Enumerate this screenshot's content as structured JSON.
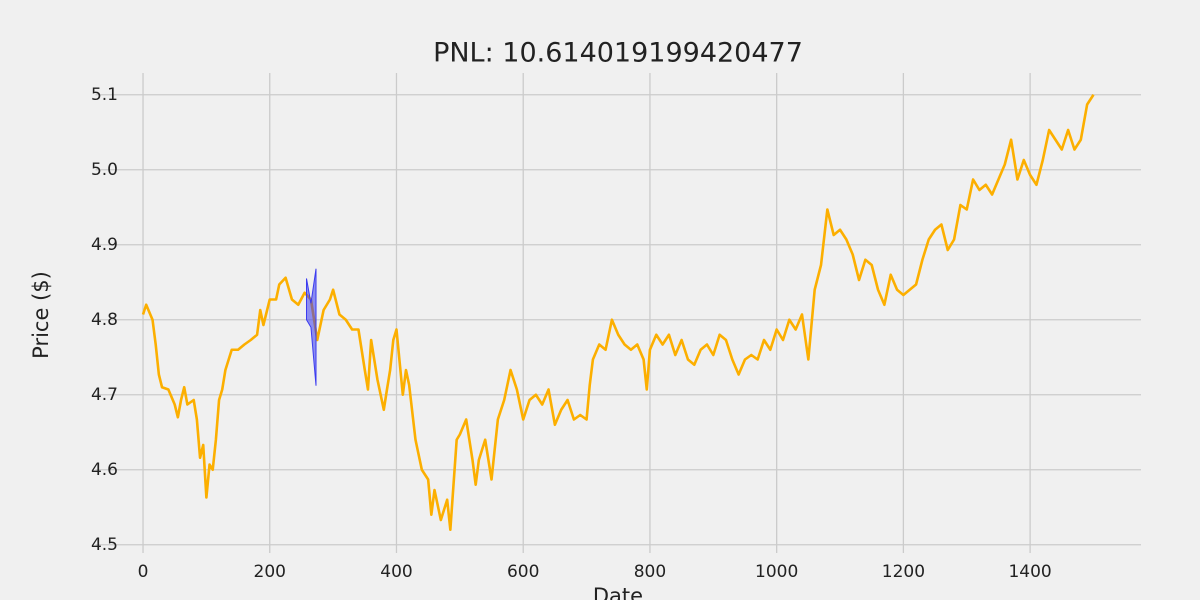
{
  "chart_data": {
    "type": "line",
    "title": "PNL: 10.614019199420477",
    "x_label": "Date",
    "y_label": "Price ($)",
    "grid": true,
    "xlim": [
      -75,
      1575
    ],
    "ylim": [
      4.489,
      5.129
    ],
    "xticks": [
      0,
      200,
      400,
      600,
      800,
      1000,
      1200,
      1400
    ],
    "yticks": [
      4.5,
      4.6,
      4.7,
      4.8,
      4.9,
      {
        "value": 5,
        "label": "5.0"
      },
      5.1
    ],
    "x": [
      0,
      5,
      15,
      20,
      25,
      30,
      40,
      50,
      55,
      60,
      65,
      70,
      80,
      85,
      90,
      95,
      100,
      105,
      110,
      115,
      120,
      125,
      130,
      140,
      150,
      160,
      170,
      180,
      185,
      190,
      200,
      210,
      215,
      225,
      235,
      245,
      255,
      265,
      275,
      285,
      295,
      300,
      310,
      320,
      330,
      340,
      350,
      355,
      360,
      370,
      380,
      385,
      390,
      395,
      400,
      410,
      415,
      420,
      430,
      440,
      450,
      455,
      460,
      470,
      480,
      485,
      495,
      500,
      510,
      520,
      525,
      530,
      540,
      550,
      560,
      570,
      580,
      590,
      600,
      610,
      620,
      630,
      640,
      650,
      660,
      670,
      680,
      690,
      700,
      705,
      710,
      720,
      730,
      740,
      750,
      760,
      770,
      780,
      790,
      795,
      800,
      810,
      820,
      830,
      840,
      850,
      860,
      870,
      880,
      890,
      900,
      910,
      920,
      930,
      940,
      950,
      960,
      970,
      980,
      990,
      1000,
      1010,
      1020,
      1030,
      1040,
      1050,
      1060,
      1070,
      1080,
      1090,
      1100,
      1110,
      1120,
      1130,
      1140,
      1150,
      1160,
      1170,
      1180,
      1190,
      1200,
      1210,
      1220,
      1230,
      1240,
      1250,
      1260,
      1270,
      1280,
      1290,
      1300,
      1310,
      1320,
      1330,
      1340,
      1350,
      1360,
      1370,
      1380,
      1390,
      1400,
      1410,
      1420,
      1430,
      1440,
      1450,
      1460,
      1470,
      1480,
      1490,
      1500
    ],
    "series": [
      {
        "color": "#fcaf00",
        "values": [
          4.807,
          4.82,
          4.8,
          4.767,
          4.727,
          4.71,
          4.707,
          4.687,
          4.67,
          4.693,
          4.71,
          4.687,
          4.693,
          4.667,
          4.616,
          4.633,
          4.563,
          4.607,
          4.6,
          4.64,
          4.693,
          4.707,
          4.733,
          4.76,
          4.76,
          4.767,
          4.773,
          4.78,
          4.813,
          4.793,
          4.827,
          4.827,
          4.847,
          4.856,
          4.827,
          4.82,
          4.836,
          4.827,
          4.773,
          4.813,
          4.827,
          4.84,
          4.807,
          4.8,
          4.787,
          4.787,
          4.733,
          4.707,
          4.773,
          4.72,
          4.68,
          4.707,
          4.733,
          4.773,
          4.787,
          4.7,
          4.733,
          4.713,
          4.64,
          4.6,
          4.587,
          4.54,
          4.573,
          4.533,
          4.56,
          4.52,
          4.64,
          4.647,
          4.667,
          4.613,
          4.58,
          4.613,
          4.64,
          4.587,
          4.667,
          4.693,
          4.733,
          4.707,
          4.667,
          4.693,
          4.7,
          4.687,
          4.707,
          4.66,
          4.68,
          4.693,
          4.667,
          4.673,
          4.667,
          4.713,
          4.747,
          4.767,
          4.76,
          4.8,
          4.78,
          4.767,
          4.76,
          4.767,
          4.747,
          4.707,
          4.76,
          4.78,
          4.767,
          4.78,
          4.753,
          4.773,
          4.747,
          4.74,
          4.76,
          4.767,
          4.753,
          4.78,
          4.773,
          4.747,
          4.727,
          4.747,
          4.753,
          4.747,
          4.773,
          4.76,
          4.787,
          4.773,
          4.8,
          4.787,
          4.807,
          4.747,
          4.84,
          4.873,
          4.947,
          4.913,
          4.92,
          4.907,
          4.887,
          4.853,
          4.88,
          4.873,
          4.84,
          4.82,
          4.86,
          4.84,
          4.833,
          4.84,
          4.847,
          4.88,
          4.907,
          4.92,
          4.927,
          4.893,
          4.907,
          4.953,
          4.947,
          4.987,
          4.973,
          4.98,
          4.967,
          4.987,
          5.007,
          5.04,
          4.987,
          5.013,
          4.993,
          4.98,
          5.013,
          5.053,
          5.04,
          5.027,
          5.053,
          5.027,
          5.04,
          5.087,
          5.1
        ]
      }
    ],
    "band": {
      "color": "#3b3bf0",
      "x": [
        258,
        265,
        273
      ],
      "upper": [
        4.855,
        4.822,
        4.868
      ],
      "lower": [
        4.8,
        4.79,
        4.712
      ]
    }
  }
}
